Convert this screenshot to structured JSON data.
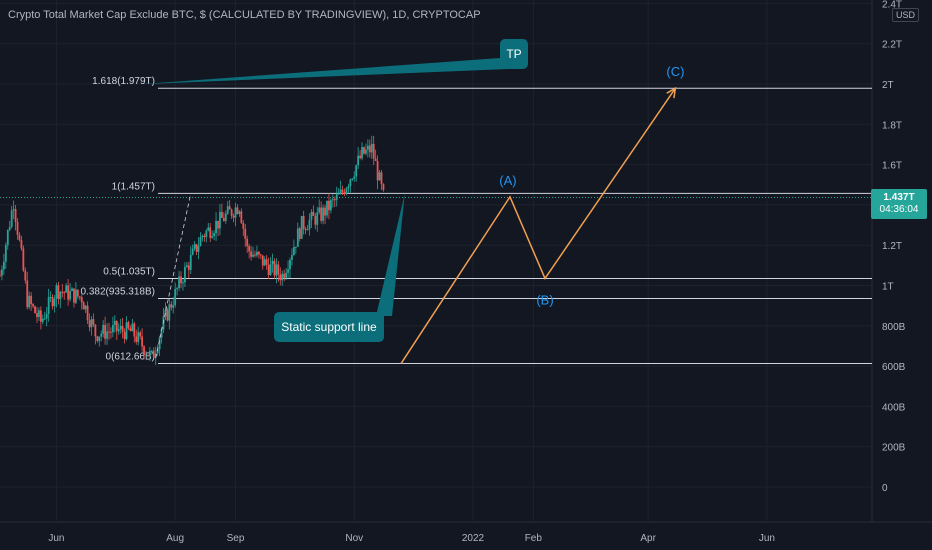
{
  "header": {
    "title": "Crypto Total Market Cap Exclude BTC, $ (CALCULATED BY TRADINGVIEW), 1D, CRYPTOCAP",
    "currency": "USD"
  },
  "price_badge": {
    "price": "1.437T",
    "countdown": "04:36:04",
    "color": "#26a69a"
  },
  "colors": {
    "background": "#131722",
    "up": "#26a69a",
    "down": "#ef5350",
    "wave": "#f0a050",
    "wave_label": "#2196f3",
    "callout": "#0b6e7a"
  },
  "chart_data": {
    "type": "candlestick",
    "y_axis": {
      "ticks": [
        0,
        200,
        400,
        600,
        800,
        1000,
        1200,
        1400,
        1600,
        1800,
        2000,
        2200,
        2400
      ],
      "tick_labels": [
        "0",
        "200B",
        "400B",
        "600B",
        "800B",
        "1T",
        "1.2T",
        "1.4T",
        "1.6T",
        "1.8T",
        "2T",
        "2.2T",
        "2.4T"
      ],
      "unit": "B USD"
    },
    "x_axis": {
      "range": [
        "2021-05-03",
        "2022-07-25"
      ],
      "ticks": [
        "2021-06-01",
        "2021-08-01",
        "2021-09-01",
        "2021-11-01",
        "2022-01-01",
        "2022-02-01",
        "2022-04-01",
        "2022-06-01"
      ],
      "tick_labels": [
        "Jun",
        "Aug",
        "Sep",
        "Nov",
        "2022",
        "Feb",
        "Apr",
        "Jun"
      ]
    },
    "fib_levels": [
      {
        "label": "1.618(1.979T)",
        "value": 1979
      },
      {
        "label": "1(1.457T)",
        "value": 1457
      },
      {
        "label": "0.5(1.035T)",
        "value": 1035
      },
      {
        "label": "0.382(935.318B)",
        "value": 935.318
      },
      {
        "label": "0(612.66B)",
        "value": 612.66
      }
    ],
    "last_price": 1437,
    "candles_daily_close_approx": [
      {
        "date": "2021-05-03",
        "close": 1050
      },
      {
        "date": "2021-05-10",
        "close": 1420
      },
      {
        "date": "2021-05-17",
        "close": 930
      },
      {
        "date": "2021-05-24",
        "close": 820
      },
      {
        "date": "2021-06-01",
        "close": 980
      },
      {
        "date": "2021-06-14",
        "close": 940
      },
      {
        "date": "2021-06-21",
        "close": 760
      },
      {
        "date": "2021-07-01",
        "close": 780
      },
      {
        "date": "2021-07-10",
        "close": 770
      },
      {
        "date": "2021-07-20",
        "close": 640
      },
      {
        "date": "2021-07-27",
        "close": 840
      },
      {
        "date": "2021-08-05",
        "close": 1050
      },
      {
        "date": "2021-08-15",
        "close": 1250
      },
      {
        "date": "2021-09-03",
        "close": 1400
      },
      {
        "date": "2021-09-07",
        "close": 1180
      },
      {
        "date": "2021-09-20",
        "close": 1080
      },
      {
        "date": "2021-09-25",
        "close": 1050
      },
      {
        "date": "2021-10-05",
        "close": 1300
      },
      {
        "date": "2021-10-15",
        "close": 1350
      },
      {
        "date": "2021-10-25",
        "close": 1450
      },
      {
        "date": "2021-11-05",
        "close": 1650
      },
      {
        "date": "2021-11-10",
        "close": 1680
      },
      {
        "date": "2021-11-16",
        "close": 1437
      }
    ],
    "wave_path": [
      {
        "date": "2021-11-25",
        "value": 612
      },
      {
        "date": "2022-01-20",
        "value": 1440
      },
      {
        "date": "2022-02-07",
        "value": 1035
      },
      {
        "date": "2022-04-15",
        "value": 1979
      }
    ],
    "wave_labels": [
      {
        "label": "(A)",
        "date": "2022-01-20",
        "value": 1440
      },
      {
        "label": "(B)",
        "date": "2022-02-07",
        "value": 1035
      },
      {
        "label": "(C)",
        "date": "2022-04-15",
        "value": 1979
      }
    ],
    "annotations": [
      {
        "text": "TP",
        "points_to": {
          "date": "2021-12-15",
          "value": 1979
        }
      },
      {
        "text": "Static support line",
        "points_to": {
          "date": "2021-11-27",
          "value": 1457
        }
      }
    ]
  }
}
